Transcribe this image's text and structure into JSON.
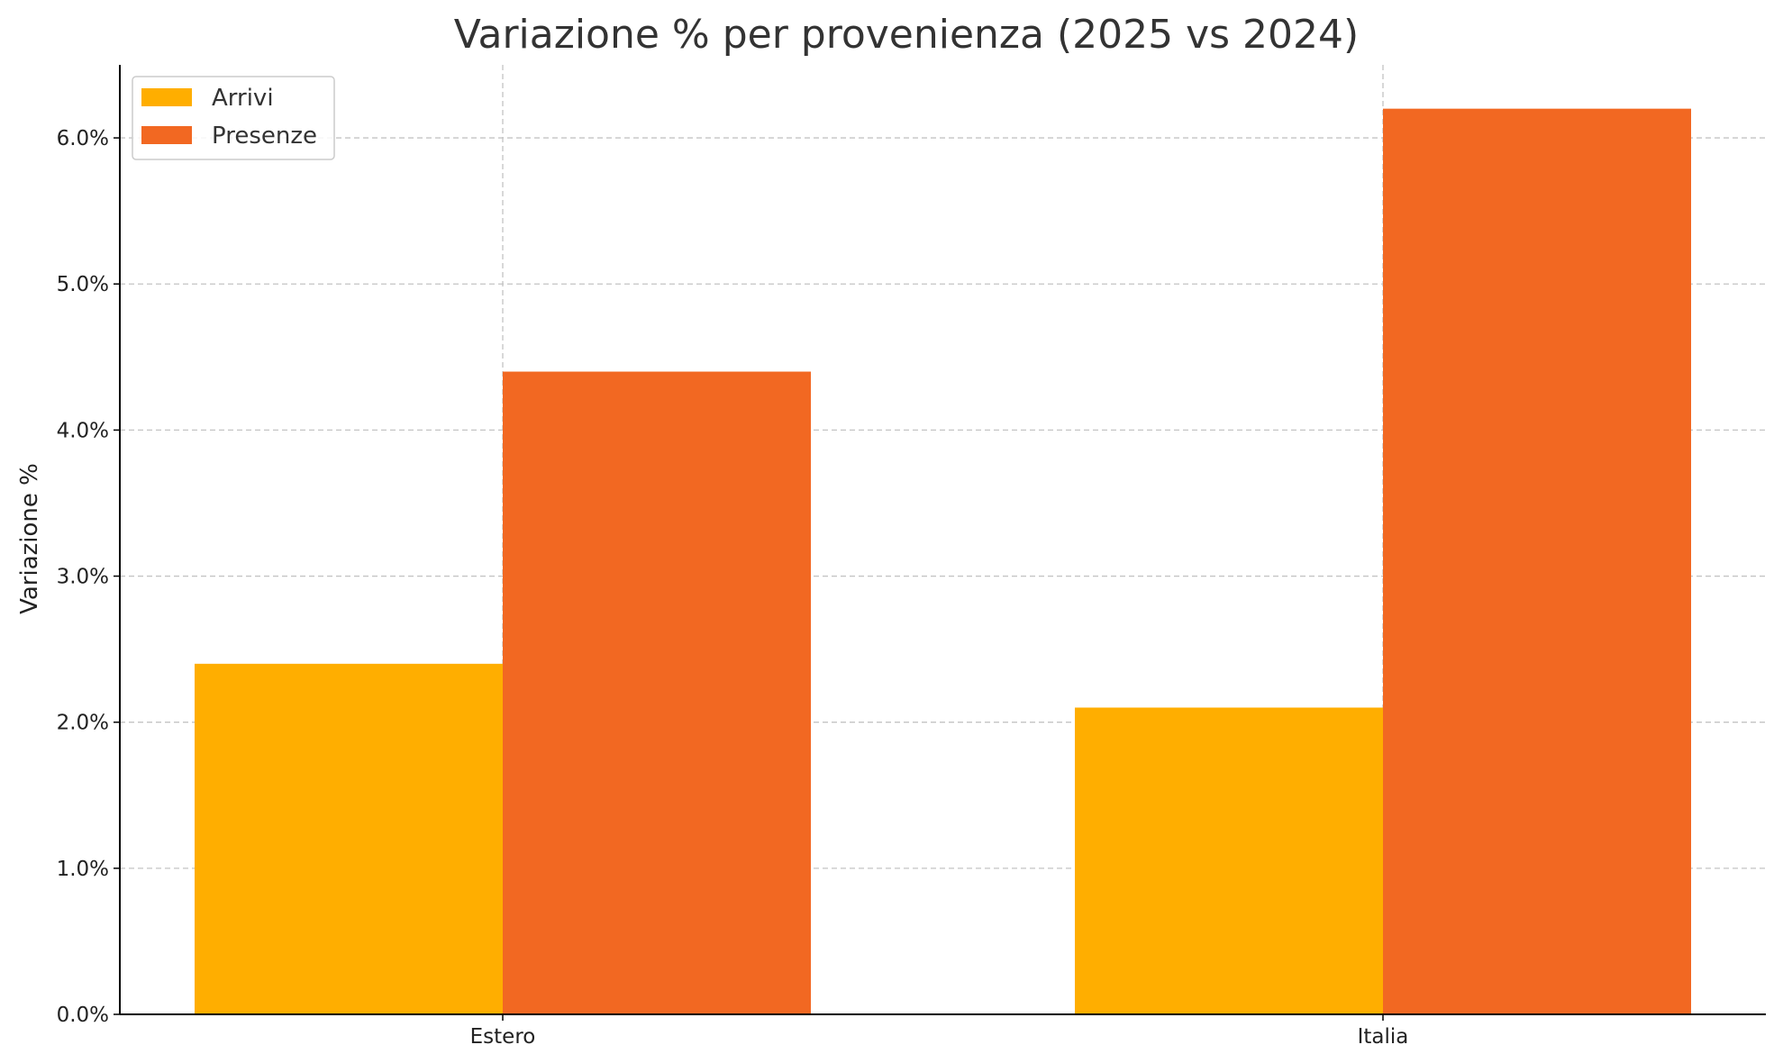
{
  "chart_data": {
    "type": "bar",
    "title": "Variazione % per provenienza (2025 vs 2024)",
    "xlabel": "",
    "ylabel": "Variazione %",
    "categories": [
      "Estero",
      "Italia"
    ],
    "series": [
      {
        "name": "Arrivi",
        "values": [
          2.4,
          2.1
        ],
        "color": "#FFAE00"
      },
      {
        "name": "Presenze",
        "values": [
          4.4,
          6.2
        ],
        "color": "#F26822"
      }
    ],
    "ylim": [
      0,
      6.5
    ],
    "yticks": [
      0,
      1,
      2,
      3,
      4,
      5,
      6
    ],
    "ytick_labels": [
      "0.0%",
      "1.0%",
      "2.0%",
      "3.0%",
      "4.0%",
      "5.0%",
      "6.0%"
    ],
    "grid": true,
    "legend_position": "top-left"
  }
}
